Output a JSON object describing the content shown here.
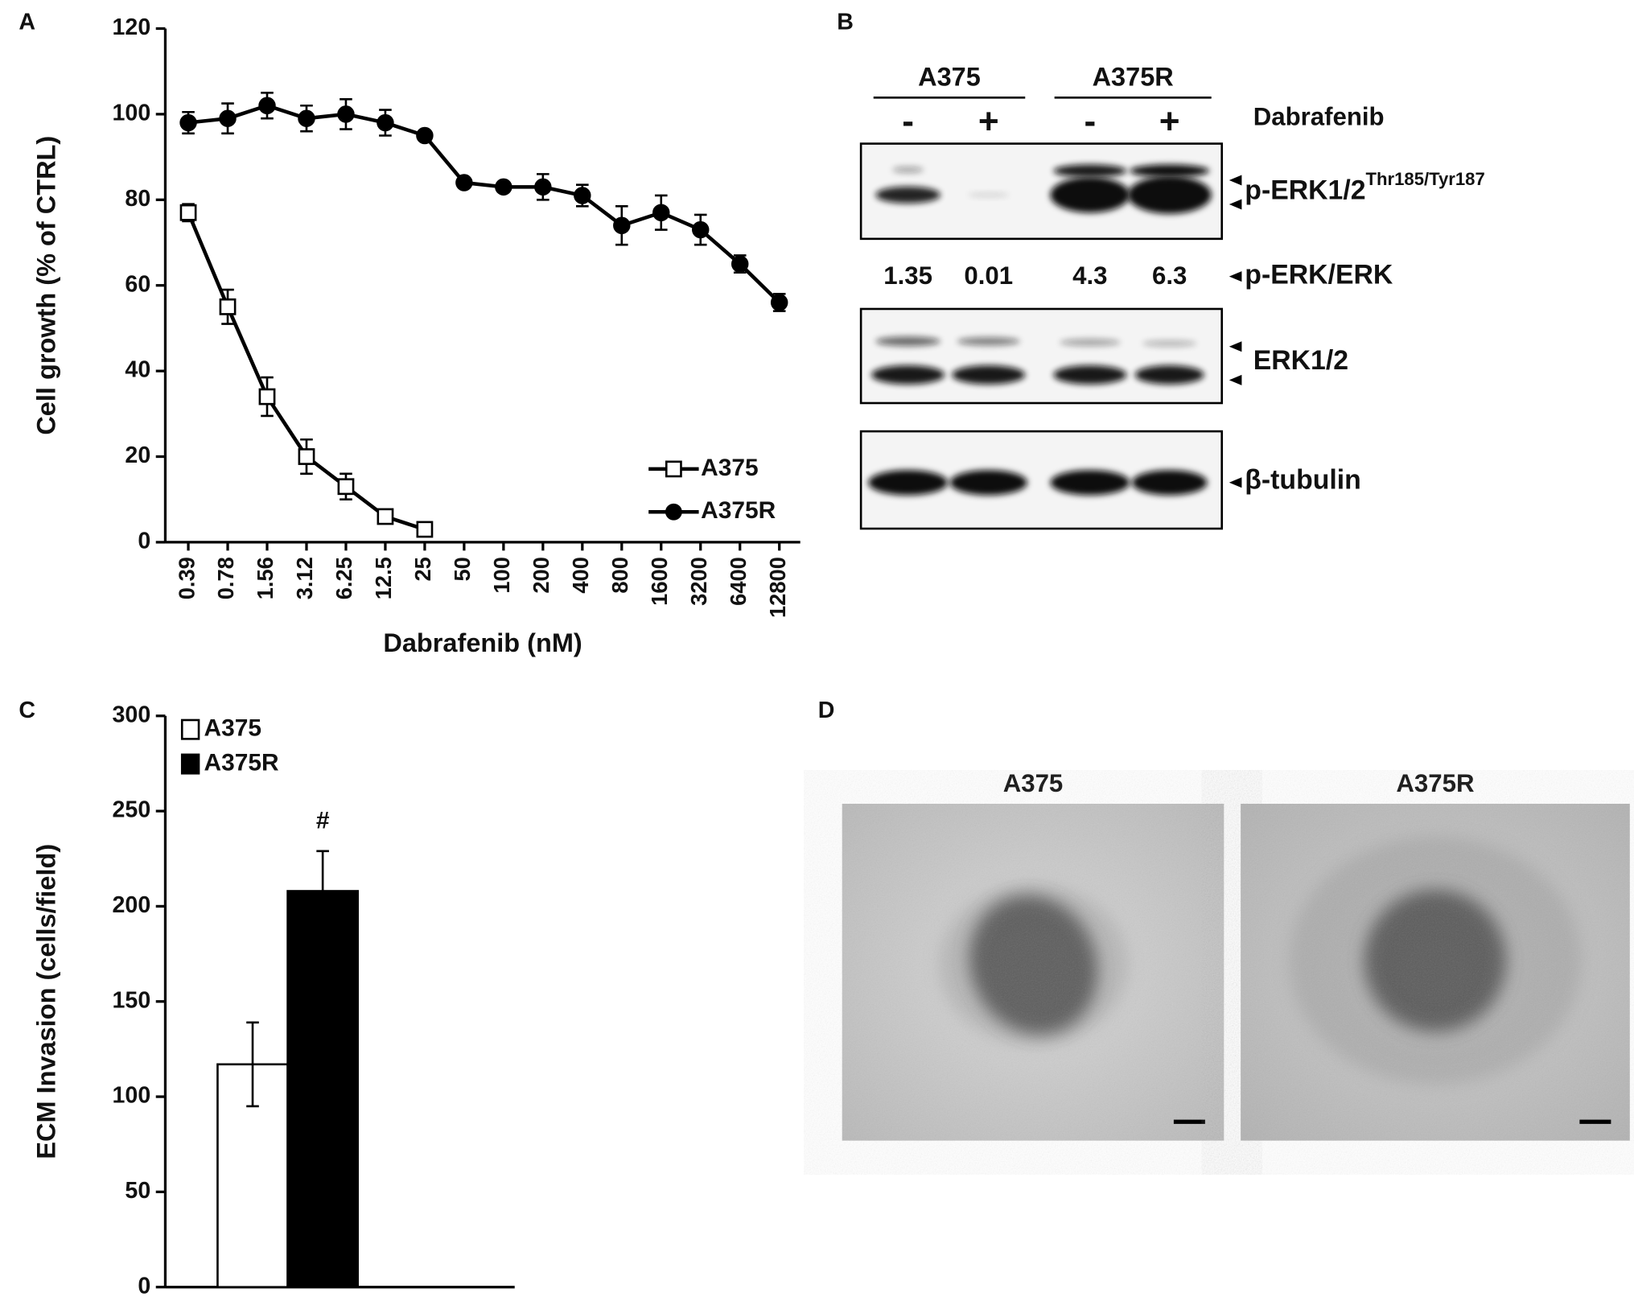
{
  "panels": [
    "A",
    "B",
    "C",
    "D"
  ],
  "chart_data": [
    {
      "type": "line",
      "ylabel": "Cell growth (% of CTRL)",
      "xlabel": "Dabrafenib (nM)",
      "categories": [
        "0.39",
        "0.78",
        "1.56",
        "3.12",
        "6.25",
        "12.5",
        "25",
        "50",
        "100",
        "200",
        "400",
        "800",
        "1600",
        "3200",
        "6400",
        "12800"
      ],
      "series": [
        {
          "name": "A375",
          "color": "#ffffff",
          "marker": "square",
          "values": [
            77,
            55,
            34,
            20,
            13,
            6,
            3,
            null,
            null,
            null,
            null,
            null,
            null,
            null,
            null,
            null
          ],
          "errors": [
            2,
            4,
            4.5,
            4,
            3,
            1,
            1,
            null,
            null,
            null,
            null,
            null,
            null,
            null,
            null,
            null
          ]
        },
        {
          "name": "A375R",
          "color": "#000000",
          "marker": "circle",
          "values": [
            98,
            99,
            102,
            99,
            100,
            98,
            95,
            84,
            83,
            83,
            81,
            74,
            77,
            73,
            65,
            56
          ],
          "errors": [
            2.5,
            3.5,
            3,
            3,
            3.5,
            3,
            1,
            0,
            0,
            3,
            2.5,
            4.5,
            4,
            3.5,
            2,
            2
          ]
        }
      ],
      "edgecolor": "#000000",
      "ylim": [
        0,
        120
      ],
      "yticks": [
        0,
        20,
        40,
        60,
        80,
        100,
        120
      ],
      "legend": "lower right"
    },
    {
      "type": "bar",
      "ylabel": "ECM Invasion (cells/field)",
      "categories": [
        null
      ],
      "series": [
        {
          "name": "A375",
          "color": "#ffffff",
          "values": [
            117
          ],
          "errors": [
            22
          ]
        },
        {
          "name": "A375R",
          "color": "#000000",
          "values": [
            208
          ],
          "errors": [
            21
          ]
        }
      ],
      "edgecolor": "#000000",
      "annotation": "#",
      "ylim": [
        0,
        300
      ],
      "yticks": [
        0,
        50,
        100,
        150,
        200,
        250,
        300
      ],
      "legend": "upper left"
    }
  ],
  "blot": {
    "groups": [
      "A375",
      "A375R"
    ],
    "treatment": "Dabrafenib",
    "lanes": [
      "-",
      "+",
      "-",
      "+"
    ],
    "rows": [
      {
        "label": "p-ERK1/2",
        "superscript": "Thr185/Tyr187"
      },
      {
        "label": "ERK1/2"
      },
      {
        "label": "β-tubulin"
      }
    ],
    "ratio_label": "p-ERK/ERK",
    "ratios": [
      1.35,
      0.01,
      4.3,
      6.3
    ]
  },
  "images": {
    "titles": [
      "A375",
      "A375R"
    ]
  }
}
